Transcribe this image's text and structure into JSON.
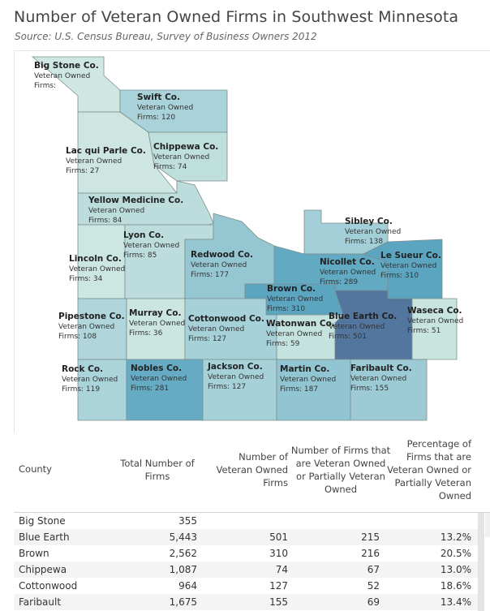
{
  "title": "Number of Veteran Owned Firms in Southwest Minnesota",
  "subtitle": "Source: U.S. Census Bureau, Survey of Business Owners 2012",
  "map": {
    "value_prefix": "Veteran Owned",
    "counties": [
      {
        "name": "Big Stone Co.",
        "sub1": "Veteran Owned",
        "sub2": "Firms:",
        "value": null,
        "color": "#cfe7e3"
      },
      {
        "name": "Swift Co.",
        "sub1": "Veteran Owned",
        "sub2": "Firms:  120",
        "value": 120,
        "color": "#a9d2da"
      },
      {
        "name": "Lac qui Parle Co.",
        "sub1": "Veteran Owned",
        "sub2": "Firms:  27",
        "value": 27,
        "color": "#cde6e1"
      },
      {
        "name": "Chippewa Co.",
        "sub1": "Veteran Owned",
        "sub2": "Firms:  74",
        "value": 74,
        "color": "#bfdfdd"
      },
      {
        "name": "Yellow Medicine Co.",
        "sub1": "Veteran Owned",
        "sub2": "Firms:  84",
        "value": 84,
        "color": "#bcdddc"
      },
      {
        "name": "Lincoln Co.",
        "sub1": "Veteran Owned",
        "sub2": "Firms:  34",
        "value": 34,
        "color": "#cce6e1"
      },
      {
        "name": "Lyon Co.",
        "sub1": "Veteran Owned",
        "sub2": "Firms:  85",
        "value": 85,
        "color": "#bcdddc"
      },
      {
        "name": "Redwood Co.",
        "sub1": "Veteran Owned",
        "sub2": "Firms:  177",
        "value": 177,
        "color": "#95c7d3"
      },
      {
        "name": "Sibley Co.",
        "sub1": "Veteran Owned",
        "sub2": "Firms:  138",
        "value": 138,
        "color": "#a3cfd8"
      },
      {
        "name": "Nicollet Co.",
        "sub1": "Veteran Owned",
        "sub2": "Firms:  289",
        "value": 289,
        "color": "#62a9c2"
      },
      {
        "name": "Le Sueur Co.",
        "sub1": "Veteran Owned",
        "sub2": "Firms:  310",
        "value": 310,
        "color": "#5ca5c0"
      },
      {
        "name": "Brown Co.",
        "sub1": "Veteran Owned",
        "sub2": "Firms:  310",
        "value": 310,
        "color": "#5ca5c0"
      },
      {
        "name": "Pipestone Co.",
        "sub1": "Veteran Owned",
        "sub2": "Firms:  108",
        "value": 108,
        "color": "#b0d6dc"
      },
      {
        "name": "Murray Co.",
        "sub1": "Veteran Owned",
        "sub2": "Firms:  36",
        "value": 36,
        "color": "#cbe5e0"
      },
      {
        "name": "Cottonwood Co.",
        "sub1": "Veteran Owned",
        "sub2": "Firms:  127",
        "value": 127,
        "color": "#a7d1d9"
      },
      {
        "name": "Watonwan Co.",
        "sub1": "Veteran Owned",
        "sub2": "Firms:  59",
        "value": 59,
        "color": "#c4e2de"
      },
      {
        "name": "Blue Earth Co.",
        "sub1": "Veteran Owned",
        "sub2": "Firms:  501",
        "value": 501,
        "color": "#53769e"
      },
      {
        "name": "Waseca Co.",
        "sub1": "Veteran Owned",
        "sub2": "Firms:  51",
        "value": 51,
        "color": "#c7e4df"
      },
      {
        "name": "Rock Co.",
        "sub1": "Veteran Owned",
        "sub2": "Firms:  119",
        "value": 119,
        "color": "#aad3da"
      },
      {
        "name": "Nobles Co.",
        "sub1": "Veteran Owned",
        "sub2": "Firms:  281",
        "value": 281,
        "color": "#66abc4"
      },
      {
        "name": "Jackson Co.",
        "sub1": "Veteran Owned",
        "sub2": "Firms:  127",
        "value": 127,
        "color": "#a7d1d9"
      },
      {
        "name": "Martin Co.",
        "sub1": "Veteran Owned",
        "sub2": "Firms:  187",
        "value": 187,
        "color": "#91c5d2"
      },
      {
        "name": "Faribault Co.",
        "sub1": "Veteran Owned",
        "sub2": "Firms:  155",
        "value": 155,
        "color": "#9ccbd5"
      }
    ]
  },
  "table": {
    "headers": {
      "county": "County",
      "total": "Total Number of Firms",
      "veteran": "Number of Veteran Owned Firms",
      "partial": "Number of Firms that are Veteran Owned or Partially Veteran Owned",
      "pct": "Percentage of Firms that are Veteran Owned or Partially Veteran Owned"
    },
    "rows": [
      {
        "county": "Big Stone",
        "total": "355",
        "veteran": "",
        "partial": "",
        "pct": ""
      },
      {
        "county": "Blue Earth",
        "total": "5,443",
        "veteran": "501",
        "partial": "215",
        "pct": "13.2%"
      },
      {
        "county": "Brown",
        "total": "2,562",
        "veteran": "310",
        "partial": "216",
        "pct": "20.5%"
      },
      {
        "county": "Chippewa",
        "total": "1,087",
        "veteran": "74",
        "partial": "67",
        "pct": "13.0%"
      },
      {
        "county": "Cottonwood",
        "total": "964",
        "veteran": "127",
        "partial": "52",
        "pct": "18.6%"
      },
      {
        "county": "Faribault",
        "total": "1,675",
        "veteran": "155",
        "partial": "69",
        "pct": "13.4%"
      }
    ]
  }
}
